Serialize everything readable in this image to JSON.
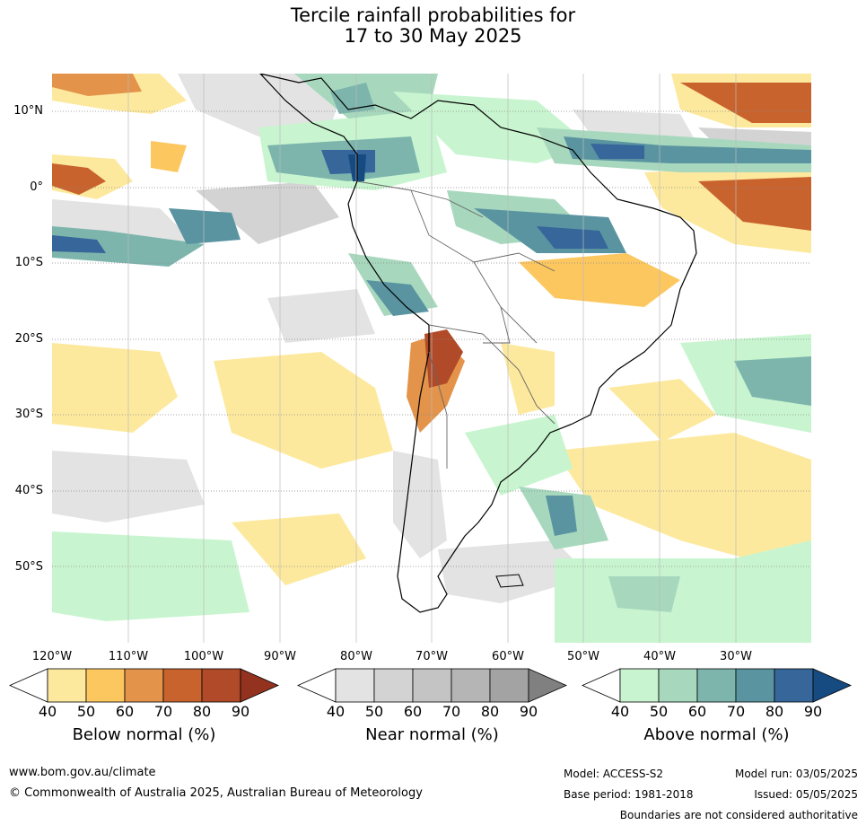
{
  "title": {
    "line1": "Tercile rainfall probabilities for",
    "line2": "17 to 30 May 2025"
  },
  "lat_labels": [
    "10°N",
    "0°",
    "10°S",
    "20°S",
    "30°S",
    "40°S",
    "50°S"
  ],
  "lon_labels": [
    "120°W",
    "110°W",
    "100°W",
    "90°W",
    "80°W",
    "70°W",
    "60°W",
    "50°W",
    "40°W",
    "30°W"
  ],
  "colorbars": [
    {
      "title": "Below normal (%)",
      "ticks": [
        "40",
        "50",
        "60",
        "70",
        "80",
        "90"
      ],
      "colors": [
        "#fde99e",
        "#fdc760",
        "#e3934a",
        "#c9632e",
        "#b04a28",
        "#93331f"
      ]
    },
    {
      "title": "Near normal (%)",
      "ticks": [
        "40",
        "50",
        "60",
        "70",
        "80",
        "90"
      ],
      "colors": [
        "#e3e3e3",
        "#d3d3d3",
        "#c4c4c4",
        "#b5b5b5",
        "#a3a3a3",
        "#808080"
      ]
    },
    {
      "title": "Above normal (%)",
      "ticks": [
        "40",
        "50",
        "60",
        "70",
        "80",
        "90"
      ],
      "colors": [
        "#c8f5cf",
        "#a7d8bd",
        "#7db5ad",
        "#5a94a1",
        "#36669a",
        "#164b82"
      ]
    }
  ],
  "footer": {
    "url": "www.bom.gov.au/climate",
    "copyright": "© Commonwealth of Australia 2025, Australian Bureau of Meteorology",
    "model": "Model: ACCESS-S2",
    "model_run": "Model run: 03/05/2025",
    "base_period": "Base period: 1981-2018",
    "issued": "Issued: 05/05/2025",
    "disclaimer": "Boundaries are not considered authoritative"
  }
}
